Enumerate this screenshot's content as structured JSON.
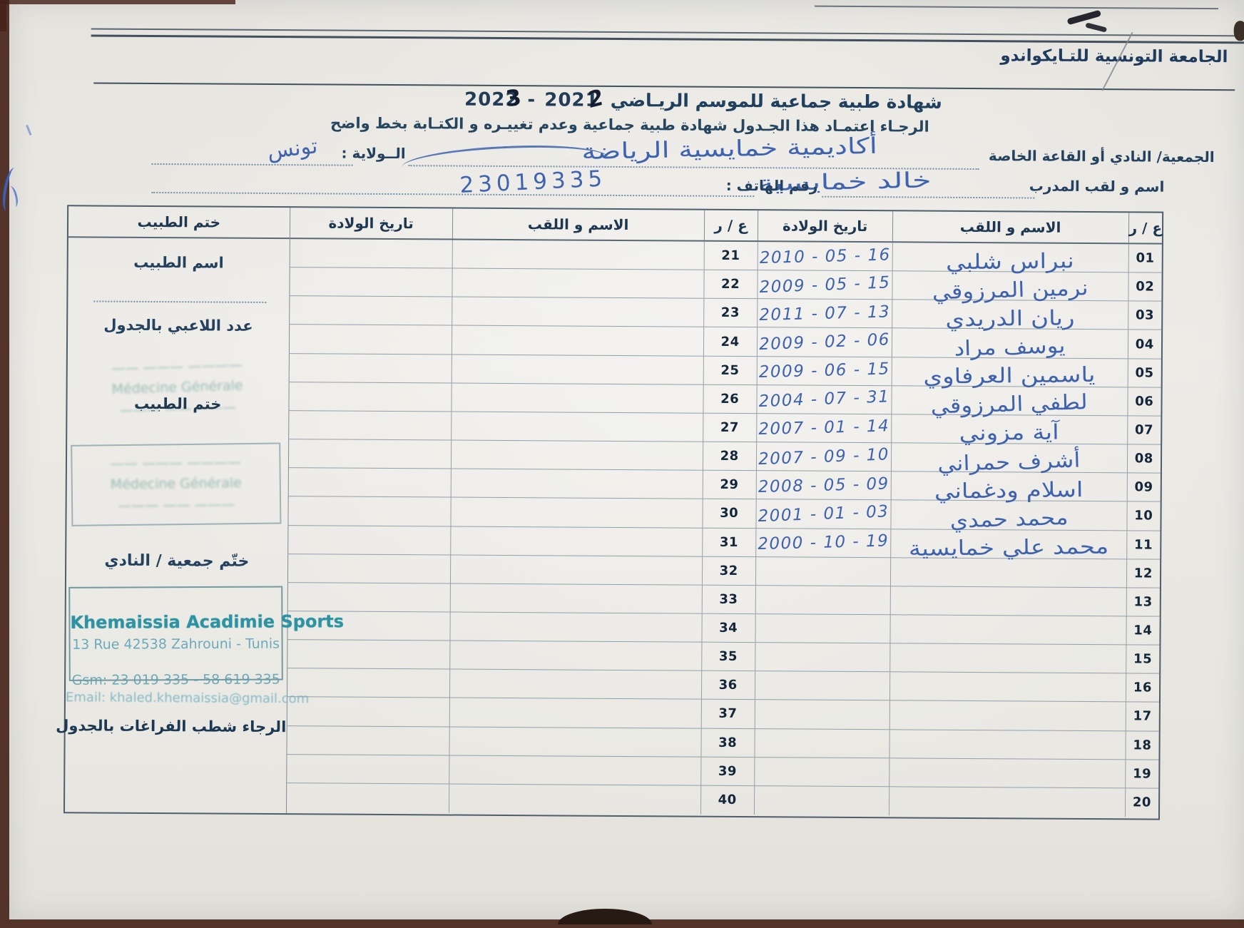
{
  "scan": {
    "federation": "الجامعة التونسية للتـايكواندو",
    "title": {
      "text": "شهادة طبية جماعية  للموسم الريـاضي",
      "year_left_printed": "2022",
      "year_left_overwrite": "3",
      "separator": "-",
      "year_right_printed": "2021",
      "year_right_overwrite": "2"
    },
    "instruction": "الرجـاء اعتمـاد هذا الجـدول  شهادة طبية جماعية وعدم تغييـره و الكتـابة بخط واضح",
    "form": {
      "club_label": "الجمعية/ النادي أو القاعة الخاصة",
      "club_value": "أكاديمية خمايسية الرياضة",
      "wilaya_label": "الــولاية :",
      "wilaya_value": "تونس",
      "coach_label": "اسم و لقب المدرب",
      "coach_value": "خالد خمايسية",
      "phone_label": "رقم الهاتف :",
      "phone_value": "23019335"
    },
    "table": {
      "headers": {
        "num": "ع / ر",
        "name": "الاسم و اللقب",
        "dob": "تاريخ الولادة",
        "doctor_stamp": "ختم الطبيب"
      },
      "rows": [
        {
          "no": "01",
          "name": "نبراس شلبي",
          "dob": "2010 - 05 - 16",
          "no2": "21"
        },
        {
          "no": "02",
          "name": "نرمين المرزوقي",
          "dob": "2009 - 05 - 15",
          "no2": "22"
        },
        {
          "no": "03",
          "name": "ريان الدريدي",
          "dob": "2011 - 07 - 13",
          "no2": "23"
        },
        {
          "no": "04",
          "name": "يوسف مراد",
          "dob": "2009 - 02 - 06",
          "no2": "24"
        },
        {
          "no": "05",
          "name": "ياسمين العرفاوي",
          "dob": "2009 - 06 - 15",
          "no2": "25"
        },
        {
          "no": "06",
          "name": "لطفي المرزوقي",
          "dob": "2004 - 07 - 31",
          "no2": "26"
        },
        {
          "no": "07",
          "name": "آية مزوني",
          "dob": "2007 - 01 - 14",
          "no2": "27"
        },
        {
          "no": "08",
          "name": "أشرف حمراني",
          "dob": "2007 - 09 - 10",
          "no2": "28"
        },
        {
          "no": "09",
          "name": "اسلام ودغماني",
          "dob": "2008 - 05 - 09",
          "no2": "29"
        },
        {
          "no": "10",
          "name": "محمد حمدي",
          "dob": "2001 - 01 - 03",
          "no2": "30"
        },
        {
          "no": "11",
          "name": "محمد علي خمايسية",
          "dob": "2000 - 10 - 19",
          "no2": "31"
        },
        {
          "no": "12",
          "name": "",
          "dob": "",
          "no2": "32"
        },
        {
          "no": "13",
          "name": "",
          "dob": "",
          "no2": "33"
        },
        {
          "no": "14",
          "name": "",
          "dob": "",
          "no2": "34"
        },
        {
          "no": "15",
          "name": "",
          "dob": "",
          "no2": "35"
        },
        {
          "no": "16",
          "name": "",
          "dob": "",
          "no2": "36"
        },
        {
          "no": "17",
          "name": "",
          "dob": "",
          "no2": "37"
        },
        {
          "no": "18",
          "name": "",
          "dob": "",
          "no2": "38"
        },
        {
          "no": "19",
          "name": "",
          "dob": "",
          "no2": "39"
        },
        {
          "no": "20",
          "name": "",
          "dob": "",
          "no2": "40"
        }
      ]
    },
    "stamp_column": {
      "doctor_name_label": "اسم الطبيب",
      "players_count_label": "عدد اللاعبي بالجدول",
      "doctor_stamp_label": "ختم الطبيب",
      "doctor_stamp_lines": [
        "—— ——— ————",
        "Médecine Générale",
        "——— —— ———"
      ],
      "club_stamp_label": "ختّم جمعية / النادي",
      "club_stamp": {
        "name": "Khemaissia Acadimie Sports",
        "address": "13 Rue 42538 Zahrouni - Tunis",
        "gsm": "Gsm: 23 019 335 - 58 619 335",
        "email": "Email: khaled.khemaissia@gmail.com"
      },
      "note": "الرجاء شطب  الفراغات بالجدول"
    }
  }
}
